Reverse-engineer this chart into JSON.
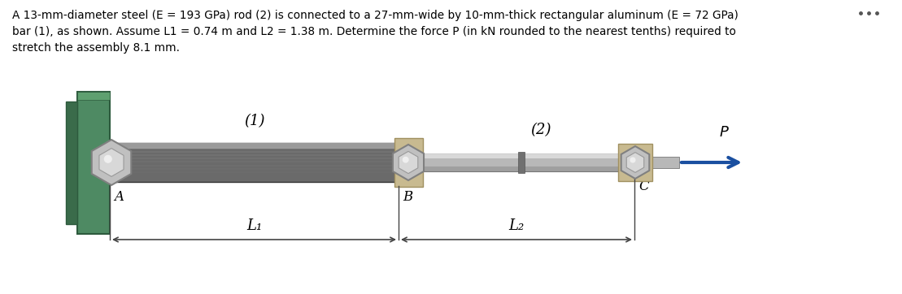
{
  "bg_color": "#ffffff",
  "wall_color_face": "#4e8a63",
  "wall_color_edge": "#2d5a3d",
  "wall_color_dark": "#3a6b4a",
  "bar1_face": "#6a6a6a",
  "bar1_top": "#9a9a9a",
  "bar1_edge": "#333333",
  "rod2_face": "#b8b8b8",
  "rod2_hi": "#e0e0e0",
  "rod2_shadow": "#888888",
  "rod2_edge": "#777777",
  "nut_gray_face": "#c0c0c0",
  "nut_gray_edge": "#808080",
  "nut_tan_face": "#c8ba90",
  "nut_tan_edge": "#a09060",
  "arrow_color": "#1a4fa0",
  "label_color": "#000000",
  "dots_color": "#555555",
  "line_color": "#444444",
  "figsize": [
    11.09,
    3.62
  ],
  "dpi": 100,
  "text_line1": "A 13-mm-diameter steel (E = 193 GPa) rod (2) is connected to a 27-mm-wide by 10-mm-thick rectangular aluminum (E = 72 GPa)",
  "text_line2": "bar (1), as shown. Assume L1 = 0.74 m and L2 = 1.38 m. Determine the force P (in kN rounded to the nearest tenths) required to",
  "text_line3": "stretch the assembly 8.1 mm.",
  "label_A": "A",
  "label_B": "B",
  "label_C": "C",
  "label_P": "P",
  "label_1": "(1)",
  "label_2": "(2)",
  "label_L1": "L₁",
  "label_L2": "L₂"
}
